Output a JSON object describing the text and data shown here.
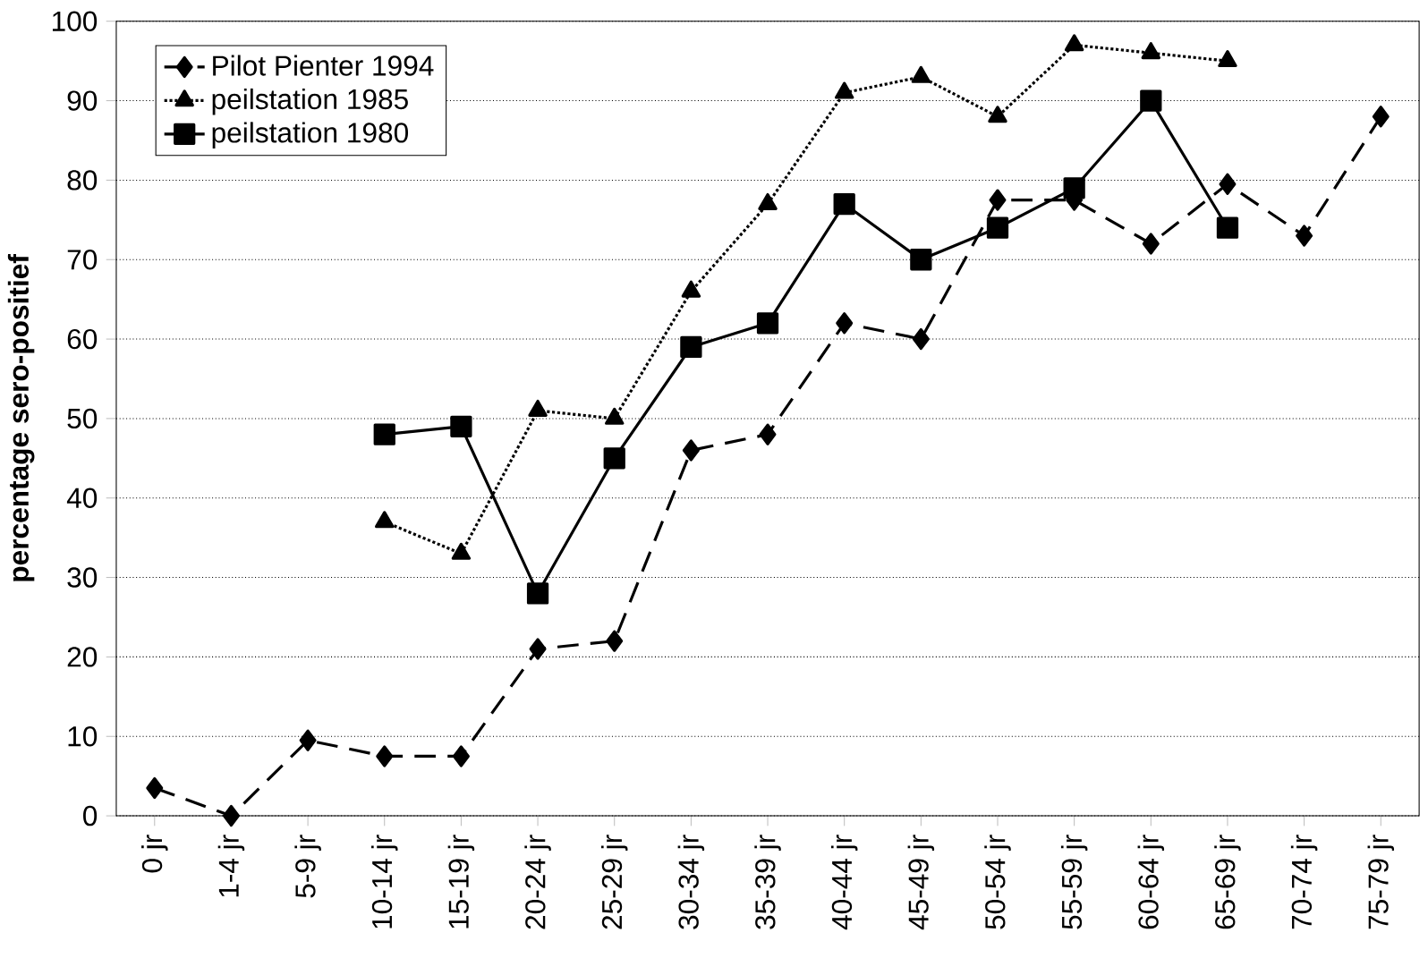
{
  "chart_data": {
    "type": "line",
    "ylabel": "percentage sero-positief",
    "categories": [
      "0 jr",
      "1-4 jr",
      "5-9 jr",
      "10-14 jr",
      "15-19 jr",
      "20-24 jr",
      "25-29 jr",
      "30-34 jr",
      "35-39 jr",
      "40-44 jr",
      "45-49 jr",
      "50-54 jr",
      "55-59 jr",
      "60-64 jr",
      "65-69 jr",
      "70-74 jr",
      "75-79 jr"
    ],
    "series": [
      {
        "name": "Pilot Pienter 1994",
        "color": "#000000",
        "marker": "diamond",
        "line_style": "dashed",
        "values": [
          3.5,
          0,
          9.5,
          7.5,
          7.5,
          21,
          22,
          46,
          48,
          62,
          60,
          77.5,
          77.5,
          72,
          79.5,
          73,
          88
        ]
      },
      {
        "name": "peilstation 1985",
        "color": "#000000",
        "marker": "triangle",
        "line_style": "dotted",
        "values": [
          null,
          null,
          null,
          37,
          33,
          51,
          50,
          66,
          77,
          91,
          93,
          88,
          97,
          96,
          95,
          null,
          null
        ]
      },
      {
        "name": "peilstation 1980",
        "color": "#000000",
        "marker": "square",
        "line_style": "solid",
        "values": [
          null,
          null,
          null,
          48,
          49,
          28,
          45,
          59,
          62,
          77,
          70,
          74,
          79,
          90,
          74,
          null,
          null
        ]
      }
    ],
    "ylim": [
      0,
      100
    ],
    "yticks": [
      0,
      10,
      20,
      30,
      40,
      50,
      60,
      70,
      80,
      90,
      100
    ],
    "grid": "y",
    "legend": "top left"
  }
}
